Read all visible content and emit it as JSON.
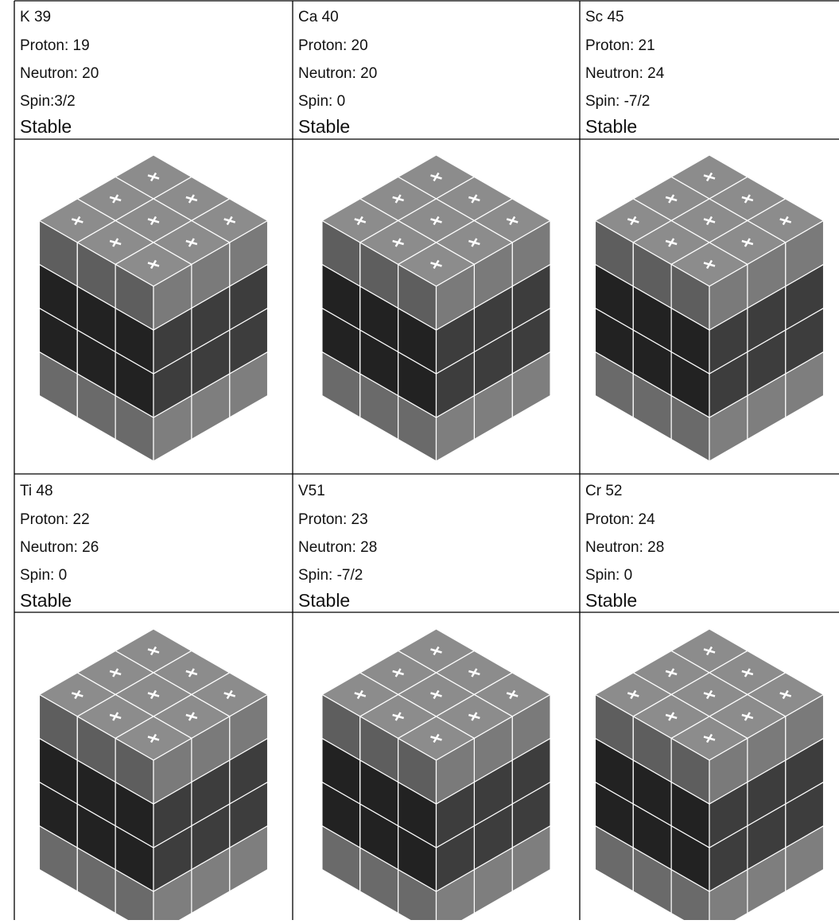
{
  "table": {
    "rows": [
      [
        {
          "title": "K 39",
          "lines": [
            "Proton: 19",
            "Neutron: 20",
            "Spin:3/2"
          ],
          "status": "Stable"
        },
        {
          "title": "Ca 40",
          "lines": [
            "Proton: 20",
            "Neutron: 20",
            "Spin: 0"
          ],
          "status": "Stable"
        },
        {
          "title": "Sc 45",
          "lines": [
            "Proton: 21",
            "Neutron: 24",
            "Spin: -7/2"
          ],
          "status": "Stable"
        }
      ],
      [
        {
          "title": "Ti 48",
          "lines": [
            "Proton: 22",
            "Neutron: 26",
            "Spin: 0"
          ],
          "status": "Stable"
        },
        {
          "title": "V51",
          "lines": [
            "Proton: 23",
            "Neutron: 28",
            "Spin: -7/2"
          ],
          "status": "Stable"
        },
        {
          "title": "Cr 52",
          "lines": [
            "Proton: 24",
            "Neutron: 28",
            "Spin: 0"
          ],
          "status": "Stable"
        }
      ]
    ]
  }
}
